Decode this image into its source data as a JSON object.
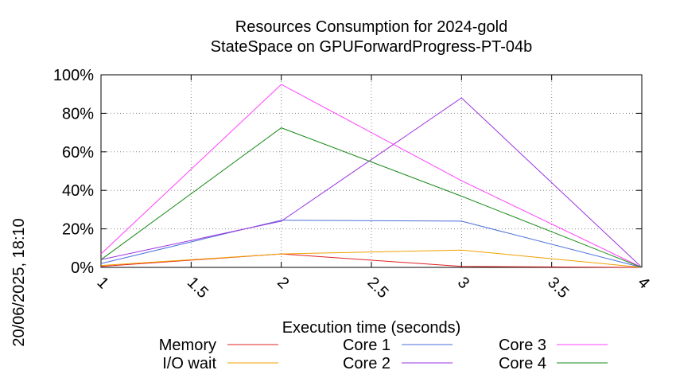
{
  "chart_data": {
    "type": "line",
    "title": "Resources Consumption for 2024-gold",
    "subtitle": "StateSpace on GPUForwardProgress-PT-04b",
    "xlabel": "Execution time (seconds)",
    "ylabel": "",
    "side_label": "20/06/2025, 18:10",
    "xlim": [
      1,
      4
    ],
    "ylim": [
      0,
      100
    ],
    "x_ticks": [
      1,
      1.5,
      2,
      2.5,
      3,
      3.5,
      4
    ],
    "x_tick_labels": [
      "1",
      "1.5",
      "2",
      "2.5",
      "3",
      "3.5",
      "4"
    ],
    "y_ticks": [
      0,
      20,
      40,
      60,
      80,
      100
    ],
    "y_tick_labels": [
      "0%",
      "20%",
      "40%",
      "60%",
      "80%",
      "100%"
    ],
    "grid": true,
    "legend_position": "bottom",
    "series": [
      {
        "name": "Memory",
        "color": "#e02020",
        "x": [
          1,
          2,
          3,
          4
        ],
        "values": [
          0.5,
          7,
          0.5,
          0
        ]
      },
      {
        "name": "I/O wait",
        "color": "#f0a000",
        "x": [
          1,
          2,
          3,
          4
        ],
        "values": [
          1,
          7,
          9,
          0
        ]
      },
      {
        "name": "Core 1",
        "color": "#4a6fd8",
        "x": [
          1,
          2,
          3,
          4
        ],
        "values": [
          2,
          24.5,
          24,
          0
        ]
      },
      {
        "name": "Core 2",
        "color": "#9a33e0",
        "x": [
          1,
          2,
          3,
          4
        ],
        "values": [
          4,
          24,
          88,
          0
        ]
      },
      {
        "name": "Core 3",
        "color": "#ff40ff",
        "x": [
          1,
          2,
          3,
          4
        ],
        "values": [
          7,
          95,
          45,
          0
        ]
      },
      {
        "name": "Core 4",
        "color": "#1a8a1a",
        "x": [
          1,
          2,
          3,
          4
        ],
        "values": [
          4,
          72.5,
          37,
          0
        ]
      }
    ]
  }
}
